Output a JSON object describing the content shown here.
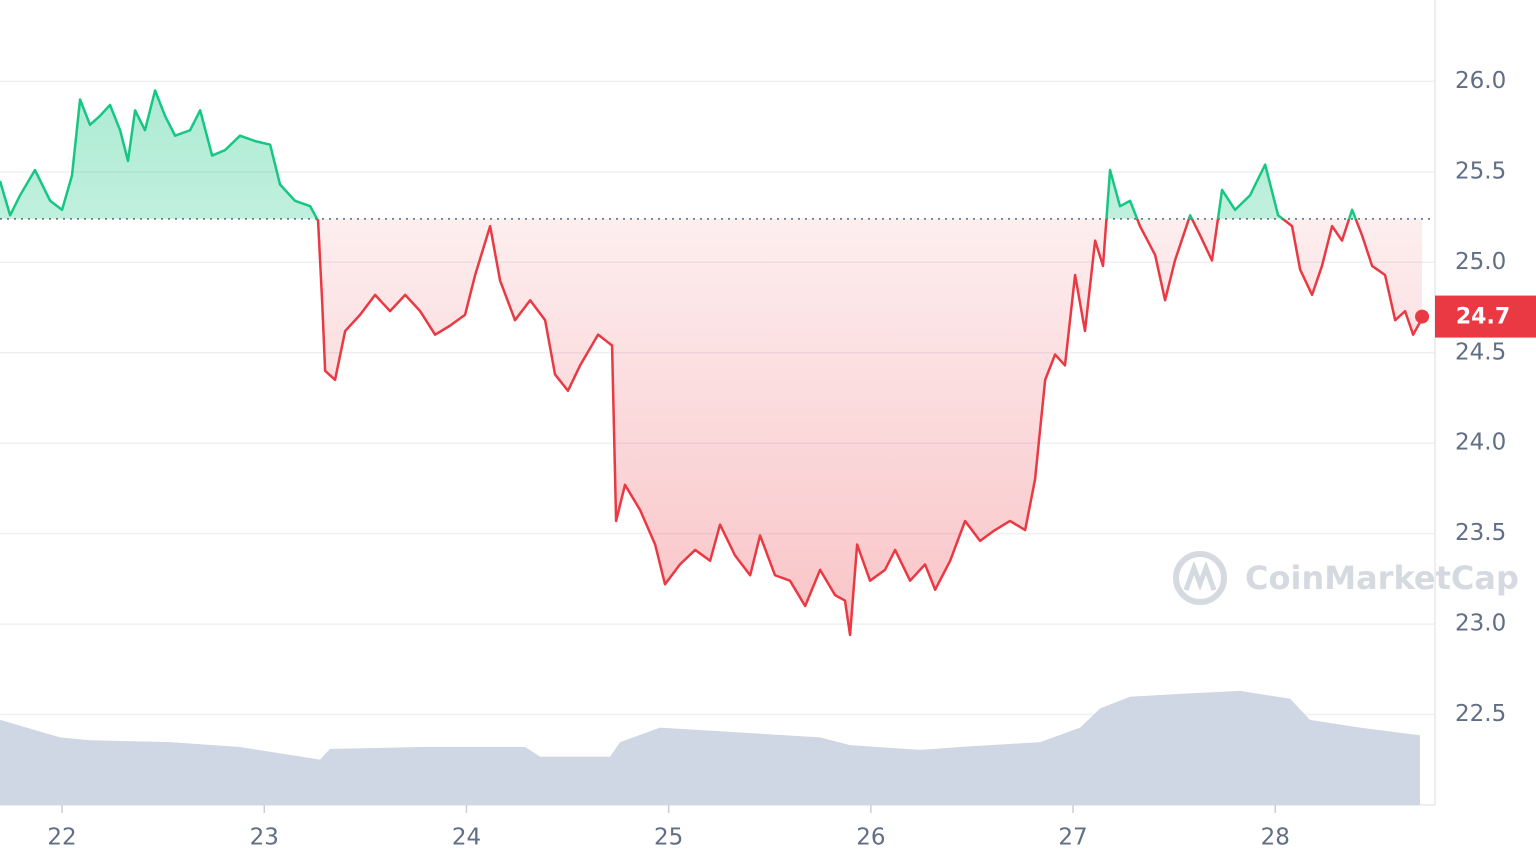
{
  "chart_data": {
    "type": "line",
    "x": [
      21.693,
      21.743,
      21.792,
      21.866,
      21.941,
      22.0,
      22.049,
      22.089,
      22.138,
      22.188,
      22.237,
      22.287,
      22.326,
      22.361,
      22.41,
      22.46,
      22.509,
      22.559,
      22.633,
      22.683,
      22.742,
      22.806,
      22.88,
      22.955,
      23.029,
      23.078,
      23.152,
      23.227,
      23.266,
      23.286,
      23.301,
      23.35,
      23.4,
      23.474,
      23.548,
      23.622,
      23.697,
      23.771,
      23.845,
      23.919,
      23.993,
      24.043,
      24.117,
      24.166,
      24.24,
      24.315,
      24.389,
      24.438,
      24.502,
      24.562,
      24.651,
      24.72,
      24.74,
      24.784,
      24.859,
      24.933,
      24.982,
      25.056,
      25.131,
      25.205,
      25.254,
      25.328,
      25.403,
      25.452,
      25.526,
      25.6,
      25.675,
      25.749,
      25.823,
      25.872,
      25.897,
      25.932,
      25.996,
      26.07,
      26.12,
      26.194,
      26.268,
      26.318,
      26.392,
      26.466,
      26.54,
      26.614,
      26.688,
      26.763,
      26.812,
      26.862,
      26.911,
      26.96,
      27.01,
      27.059,
      27.109,
      27.148,
      27.183,
      27.232,
      27.282,
      27.331,
      27.406,
      27.455,
      27.504,
      27.579,
      27.628,
      27.687,
      27.737,
      27.801,
      27.875,
      27.95,
      28.014,
      28.083,
      28.123,
      28.182,
      28.231,
      28.281,
      28.33,
      28.38,
      28.429,
      28.479,
      28.543,
      28.593,
      28.642,
      28.682,
      28.726
    ],
    "values": [
      25.45,
      25.26,
      25.37,
      25.51,
      25.34,
      25.29,
      25.48,
      25.9,
      25.76,
      25.81,
      25.87,
      25.73,
      25.56,
      25.84,
      25.73,
      25.95,
      25.81,
      25.7,
      25.73,
      25.84,
      25.59,
      25.62,
      25.7,
      25.67,
      25.65,
      25.43,
      25.34,
      25.31,
      25.23,
      24.79,
      24.4,
      24.35,
      24.62,
      24.71,
      24.82,
      24.73,
      24.82,
      24.73,
      24.6,
      24.65,
      24.71,
      24.93,
      25.2,
      24.9,
      24.68,
      24.79,
      24.68,
      24.38,
      24.29,
      24.43,
      24.6,
      24.54,
      23.57,
      23.77,
      23.63,
      23.44,
      23.22,
      23.33,
      23.41,
      23.35,
      23.55,
      23.38,
      23.27,
      23.49,
      23.27,
      23.24,
      23.1,
      23.3,
      23.16,
      23.13,
      22.94,
      23.44,
      23.24,
      23.3,
      23.41,
      23.24,
      23.33,
      23.19,
      23.35,
      23.57,
      23.46,
      23.52,
      23.57,
      23.52,
      23.8,
      24.35,
      24.49,
      24.43,
      24.93,
      24.62,
      25.12,
      24.98,
      25.51,
      25.31,
      25.34,
      25.2,
      25.04,
      24.79,
      25.01,
      25.26,
      25.15,
      25.01,
      25.4,
      25.29,
      25.37,
      25.54,
      25.26,
      25.2,
      24.96,
      24.82,
      24.98,
      25.2,
      25.12,
      25.29,
      25.15,
      24.98,
      24.93,
      24.68,
      24.73,
      24.6,
      24.69
    ],
    "up_color": "#16c784",
    "down_color": "#ea3943",
    "reference": 25.24,
    "last_price": 24.7,
    "volume": {
      "x": [
        21.693,
        21.99,
        22.138,
        22.534,
        22.88,
        23.276,
        23.325,
        23.771,
        24.29,
        24.364,
        24.71,
        24.76,
        24.957,
        25.749,
        25.897,
        26.243,
        26.441,
        26.837,
        27.035,
        27.134,
        27.282,
        27.529,
        27.826,
        28.073,
        28.172,
        28.419,
        28.716
      ],
      "values": [
        88,
        70,
        67,
        65,
        60,
        47,
        58,
        60,
        60,
        50,
        50,
        65,
        80,
        70,
        62,
        57,
        60,
        65,
        80,
        100,
        112,
        115,
        118,
        110,
        88,
        80,
        72
      ],
      "ylim": [
        0,
        150
      ],
      "color": "#cfd6e4"
    },
    "xlim": [
      21.693,
      28.79
    ],
    "xticks": [
      22,
      23,
      24,
      25,
      26,
      27,
      28
    ],
    "ylim": [
      22.0,
      26.45
    ],
    "yticks": [
      {
        "value": 22.5,
        "label": "22.5"
      },
      {
        "value": 23,
        "label": "23.0"
      },
      23.5,
      {
        "value": 24,
        "label": "24.0"
      },
      24.5,
      {
        "value": 25,
        "label": "25.0"
      },
      25.5,
      {
        "value": 26,
        "label": "26.0"
      }
    ],
    "grid": true,
    "watermark": "CoinMarketCap"
  }
}
